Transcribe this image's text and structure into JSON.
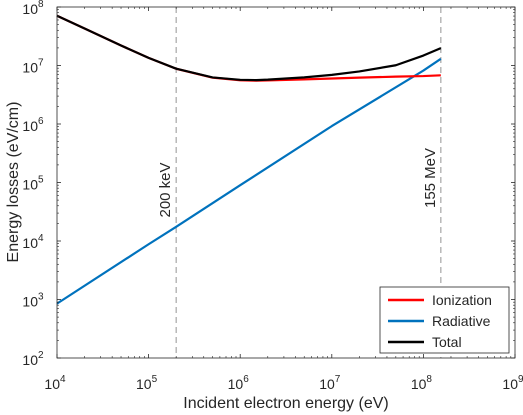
{
  "chart_data": {
    "type": "line",
    "title": "",
    "xlabel": "Incident electron energy (eV)",
    "ylabel": "Energy losses (eV/cm)",
    "x_scale": "log",
    "y_scale": "log",
    "xlim": [
      10000,
      1000000000
    ],
    "ylim": [
      100,
      100000000
    ],
    "x_ticks": [
      {
        "value": 10000,
        "base": "10",
        "exp": "4"
      },
      {
        "value": 100000,
        "base": "10",
        "exp": "5"
      },
      {
        "value": 1000000,
        "base": "10",
        "exp": "6"
      },
      {
        "value": 10000000,
        "base": "10",
        "exp": "7"
      },
      {
        "value": 100000000,
        "base": "10",
        "exp": "8"
      },
      {
        "value": 1000000000,
        "base": "10",
        "exp": "9"
      }
    ],
    "y_ticks": [
      {
        "value": 100,
        "base": "10",
        "exp": "2"
      },
      {
        "value": 1000,
        "base": "10",
        "exp": "3"
      },
      {
        "value": 10000,
        "base": "10",
        "exp": "4"
      },
      {
        "value": 100000,
        "base": "10",
        "exp": "5"
      },
      {
        "value": 1000000,
        "base": "10",
        "exp": "6"
      },
      {
        "value": 10000000,
        "base": "10",
        "exp": "7"
      },
      {
        "value": 100000000,
        "base": "10",
        "exp": "8"
      }
    ],
    "grid": false,
    "legend_position": "bottom-right",
    "vlines": [
      {
        "x": 200000,
        "label": "200 keV",
        "color": "#a6a6a6"
      },
      {
        "x": 155000000,
        "label": "155 MeV",
        "color": "#a6a6a6"
      }
    ],
    "series": [
      {
        "name": "Ionization",
        "color": "#ff0000",
        "x": [
          10000,
          20000,
          50000,
          100000,
          200000,
          500000,
          1000000,
          1500000,
          2000000,
          5000000,
          10000000,
          20000000,
          50000000,
          100000000,
          155000000
        ],
        "y": [
          71000000,
          43000000,
          22000000,
          13500000,
          8800000,
          6200000,
          5600000,
          5500000,
          5550000,
          5800000,
          6000000,
          6200000,
          6450000,
          6600000,
          6800000
        ]
      },
      {
        "name": "Radiative",
        "color": "#0072bd",
        "x": [
          10000,
          100000,
          200000,
          1000000,
          10000000,
          100000000,
          155000000
        ],
        "y": [
          850,
          8800,
          17500,
          90000,
          920000,
          8200000,
          13000000
        ]
      },
      {
        "name": "Total",
        "color": "#000000",
        "x": [
          10000,
          20000,
          50000,
          100000,
          200000,
          500000,
          1000000,
          1500000,
          2000000,
          5000000,
          10000000,
          20000000,
          50000000,
          100000000,
          155000000
        ],
        "y": [
          71000000,
          43000000,
          22000000,
          13500000,
          8820000,
          6250000,
          5690000,
          5630000,
          5730000,
          6260000,
          6920000,
          7910000,
          10100000,
          14800000,
          19800000
        ]
      }
    ]
  }
}
